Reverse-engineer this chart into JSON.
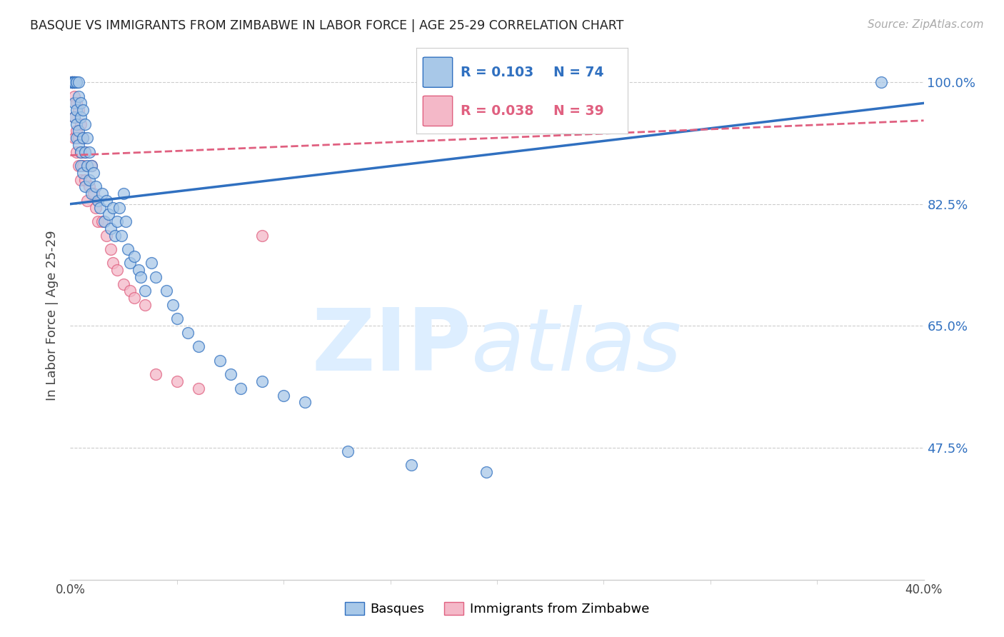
{
  "title": "BASQUE VS IMMIGRANTS FROM ZIMBABWE IN LABOR FORCE | AGE 25-29 CORRELATION CHART",
  "source": "Source: ZipAtlas.com",
  "ylabel": "In Labor Force | Age 25-29",
  "x_min": 0.0,
  "x_max": 0.4,
  "y_min": 0.285,
  "y_max": 1.045,
  "y_ticks": [
    0.475,
    0.65,
    0.825,
    1.0
  ],
  "y_tick_labels": [
    "47.5%",
    "65.0%",
    "82.5%",
    "100.0%"
  ],
  "grid_color": "#cccccc",
  "background_color": "#ffffff",
  "blue_color": "#a8c8e8",
  "pink_color": "#f4b8c8",
  "blue_line_color": "#3070c0",
  "pink_line_color": "#e06080",
  "watermark_color": "#ddeeff",
  "legend_R_blue": "R = 0.103",
  "legend_N_blue": "N = 74",
  "legend_R_pink": "R = 0.038",
  "legend_N_pink": "N = 39",
  "blue_line_x0": 0.0,
  "blue_line_y0": 0.825,
  "blue_line_x1": 0.4,
  "blue_line_y1": 0.97,
  "pink_line_x0": 0.0,
  "pink_line_y0": 0.895,
  "pink_line_x1": 0.4,
  "pink_line_y1": 0.945,
  "blue_x": [
    0.001,
    0.001,
    0.001,
    0.001,
    0.002,
    0.002,
    0.002,
    0.002,
    0.002,
    0.002,
    0.003,
    0.003,
    0.003,
    0.003,
    0.003,
    0.004,
    0.004,
    0.004,
    0.004,
    0.005,
    0.005,
    0.005,
    0.005,
    0.006,
    0.006,
    0.006,
    0.007,
    0.007,
    0.007,
    0.008,
    0.008,
    0.009,
    0.009,
    0.01,
    0.01,
    0.011,
    0.012,
    0.013,
    0.014,
    0.015,
    0.016,
    0.017,
    0.018,
    0.019,
    0.02,
    0.021,
    0.022,
    0.023,
    0.024,
    0.025,
    0.026,
    0.027,
    0.028,
    0.03,
    0.032,
    0.033,
    0.035,
    0.038,
    0.04,
    0.045,
    0.048,
    0.05,
    0.055,
    0.06,
    0.07,
    0.075,
    0.08,
    0.09,
    0.1,
    0.11,
    0.13,
    0.16,
    0.195,
    0.38
  ],
  "blue_y": [
    1.0,
    1.0,
    1.0,
    1.0,
    1.0,
    1.0,
    1.0,
    1.0,
    0.97,
    0.95,
    1.0,
    1.0,
    0.96,
    0.94,
    0.92,
    1.0,
    0.98,
    0.93,
    0.91,
    0.97,
    0.95,
    0.9,
    0.88,
    0.96,
    0.92,
    0.87,
    0.94,
    0.9,
    0.85,
    0.92,
    0.88,
    0.9,
    0.86,
    0.88,
    0.84,
    0.87,
    0.85,
    0.83,
    0.82,
    0.84,
    0.8,
    0.83,
    0.81,
    0.79,
    0.82,
    0.78,
    0.8,
    0.82,
    0.78,
    0.84,
    0.8,
    0.76,
    0.74,
    0.75,
    0.73,
    0.72,
    0.7,
    0.74,
    0.72,
    0.7,
    0.68,
    0.66,
    0.64,
    0.62,
    0.6,
    0.58,
    0.56,
    0.57,
    0.55,
    0.54,
    0.47,
    0.45,
    0.44,
    1.0
  ],
  "pink_x": [
    0.001,
    0.001,
    0.001,
    0.002,
    0.002,
    0.002,
    0.002,
    0.003,
    0.003,
    0.003,
    0.004,
    0.004,
    0.004,
    0.005,
    0.005,
    0.005,
    0.006,
    0.006,
    0.007,
    0.007,
    0.008,
    0.009,
    0.01,
    0.011,
    0.012,
    0.013,
    0.015,
    0.017,
    0.019,
    0.02,
    0.022,
    0.025,
    0.028,
    0.03,
    0.035,
    0.04,
    0.05,
    0.06,
    0.09
  ],
  "pink_y": [
    1.0,
    1.0,
    1.0,
    1.0,
    0.98,
    0.95,
    0.92,
    0.97,
    0.93,
    0.9,
    0.96,
    0.92,
    0.88,
    0.94,
    0.9,
    0.86,
    0.92,
    0.88,
    0.9,
    0.86,
    0.83,
    0.85,
    0.88,
    0.84,
    0.82,
    0.8,
    0.8,
    0.78,
    0.76,
    0.74,
    0.73,
    0.71,
    0.7,
    0.69,
    0.68,
    0.58,
    0.57,
    0.56,
    0.78
  ]
}
